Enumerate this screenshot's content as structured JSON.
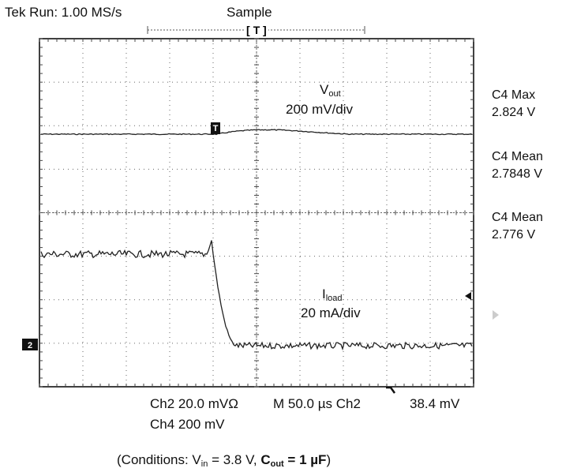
{
  "header": {
    "run_status": "Tek Run: 1.00 MS/s",
    "acq_mode": "Sample",
    "trigger_marker": "T"
  },
  "annotations": {
    "vout_label": "V",
    "vout_sub": "out",
    "vout_scale": "200 mV/div",
    "iload_label": "I",
    "iload_sub": "load",
    "iload_scale": "20 mA/div"
  },
  "measurements": [
    {
      "label": "C4 Max",
      "value": "2.824 V"
    },
    {
      "label": "C4 Mean",
      "value": "2.7848 V"
    },
    {
      "label": "C4 Mean",
      "value": "2.776 V"
    }
  ],
  "footer": {
    "ch2": "Ch2 20.0 mVΩ",
    "timebase": "M 50.0 µs Ch2",
    "trigger_level": "38.4 mV",
    "ch4": "Ch4 200 mV"
  },
  "conditions": {
    "prefix": "(Conditions: V",
    "vin_sub": "in",
    "vin_eq": " = 3.8 V, ",
    "cout_label": "C",
    "cout_sub": "out",
    "cout_eq": " = 1 µF",
    "suffix": ")"
  },
  "markers": {
    "ch2_ground": "2"
  },
  "colors": {
    "trace": "#222222",
    "grid": "#444444",
    "frame": "#000000"
  }
}
